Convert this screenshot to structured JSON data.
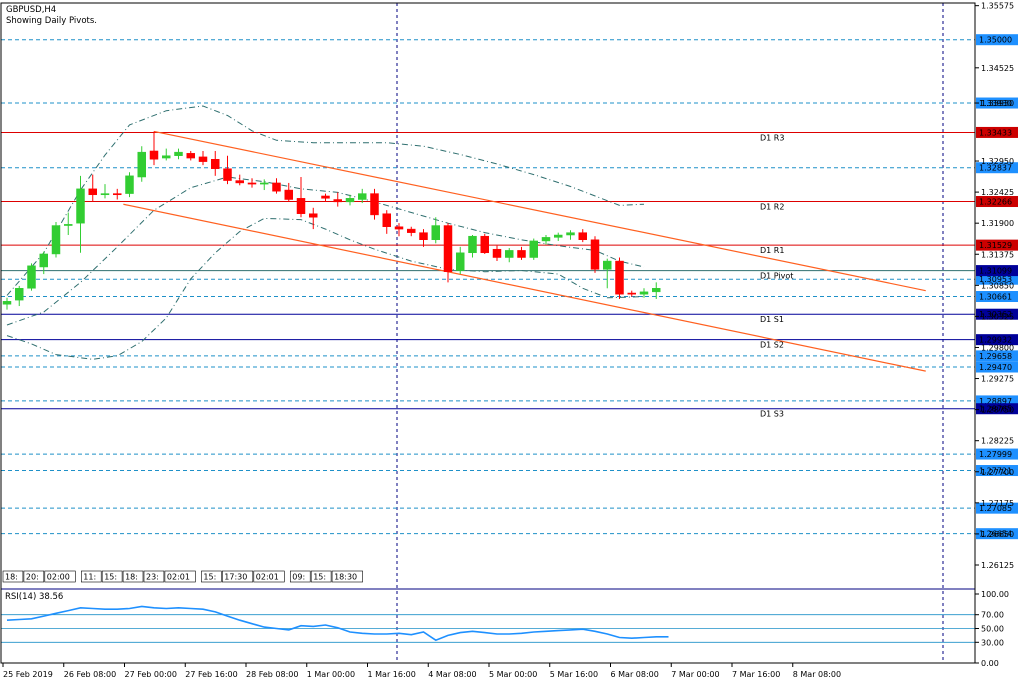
{
  "header": {
    "symbol": "GBPUSD,H4",
    "subtitle": "Showing Daily Pivots."
  },
  "colors": {
    "background": "#ffffff",
    "frame": "#000080",
    "bull": "#32cd32",
    "bear": "#ff0000",
    "pivot_red": "#dd0000",
    "pivot_blue": "#000099",
    "level_dash": "#1e90c8",
    "channel": "#ff6020",
    "bollinger": "#2f6f6f",
    "rsi_line": "#1e90ff",
    "label_box": "#1e90ff"
  },
  "chart_data": [
    {
      "type": "candlestick",
      "title": "GBPUSD,H4",
      "subtitle": "Showing Daily Pivots.",
      "ylim": [
        1.2577,
        1.3562
      ],
      "price_ticks": [
        "1.35575",
        "1.34525",
        "1.33930",
        "1.32950",
        "1.32425",
        "1.31900",
        "1.31375",
        "1.30850",
        "1.30325",
        "1.29800",
        "1.29275",
        "1.28750",
        "1.28225",
        "1.27700",
        "1.27175",
        "1.26650",
        "1.26125"
      ],
      "x_labels": [
        "25 Feb 2019",
        "26 Feb 08:00",
        "27 Feb 00:00",
        "27 Feb 16:00",
        "28 Feb 08:00",
        "1 Mar 00:00",
        "1 Mar 16:00",
        "4 Mar 08:00",
        "5 Mar 00:00",
        "5 Mar 16:00",
        "6 Mar 08:00",
        "7 Mar 00:00",
        "7 Mar 16:00",
        "8 Mar 08:00"
      ],
      "session_labels": [
        "18:",
        "20:",
        "02:00",
        "11:",
        "15:",
        "18:",
        "23:",
        "02:01",
        "15:",
        "17:30",
        "02:01",
        "09:",
        "15:",
        "18:30"
      ],
      "candles": [
        {
          "o": 1.3053,
          "h": 1.3064,
          "l": 1.3044,
          "c": 1.3058
        },
        {
          "o": 1.306,
          "h": 1.3084,
          "l": 1.305,
          "c": 1.308
        },
        {
          "o": 1.308,
          "h": 1.3122,
          "l": 1.3076,
          "c": 1.3118
        },
        {
          "o": 1.3116,
          "h": 1.3142,
          "l": 1.3104,
          "c": 1.3138
        },
        {
          "o": 1.3138,
          "h": 1.3192,
          "l": 1.3132,
          "c": 1.3186
        },
        {
          "o": 1.3186,
          "h": 1.3208,
          "l": 1.317,
          "c": 1.3188
        },
        {
          "o": 1.319,
          "h": 1.327,
          "l": 1.314,
          "c": 1.3248
        },
        {
          "o": 1.3248,
          "h": 1.3272,
          "l": 1.3226,
          "c": 1.3238
        },
        {
          "o": 1.3238,
          "h": 1.3256,
          "l": 1.3232,
          "c": 1.324
        },
        {
          "o": 1.324,
          "h": 1.3248,
          "l": 1.323,
          "c": 1.3238
        },
        {
          "o": 1.324,
          "h": 1.3276,
          "l": 1.3234,
          "c": 1.327
        },
        {
          "o": 1.3268,
          "h": 1.332,
          "l": 1.326,
          "c": 1.331
        },
        {
          "o": 1.3312,
          "h": 1.3345,
          "l": 1.3288,
          "c": 1.3298
        },
        {
          "o": 1.33,
          "h": 1.3316,
          "l": 1.3296,
          "c": 1.3304
        },
        {
          "o": 1.3304,
          "h": 1.3316,
          "l": 1.3298,
          "c": 1.331
        },
        {
          "o": 1.3308,
          "h": 1.3312,
          "l": 1.3296,
          "c": 1.33
        },
        {
          "o": 1.3302,
          "h": 1.3312,
          "l": 1.3288,
          "c": 1.3294
        },
        {
          "o": 1.3298,
          "h": 1.3312,
          "l": 1.327,
          "c": 1.3282
        },
        {
          "o": 1.3282,
          "h": 1.3304,
          "l": 1.3256,
          "c": 1.3262
        },
        {
          "o": 1.3262,
          "h": 1.3272,
          "l": 1.3254,
          "c": 1.3258
        },
        {
          "o": 1.3258,
          "h": 1.3266,
          "l": 1.325,
          "c": 1.3256
        },
        {
          "o": 1.3256,
          "h": 1.3264,
          "l": 1.3246,
          "c": 1.3258
        },
        {
          "o": 1.3258,
          "h": 1.3266,
          "l": 1.324,
          "c": 1.3244
        },
        {
          "o": 1.3246,
          "h": 1.3258,
          "l": 1.3226,
          "c": 1.323
        },
        {
          "o": 1.3232,
          "h": 1.3268,
          "l": 1.32,
          "c": 1.3206
        },
        {
          "o": 1.3206,
          "h": 1.3216,
          "l": 1.318,
          "c": 1.32
        },
        {
          "o": 1.3236,
          "h": 1.324,
          "l": 1.3226,
          "c": 1.3232
        },
        {
          "o": 1.323,
          "h": 1.3242,
          "l": 1.3218,
          "c": 1.3226
        },
        {
          "o": 1.3226,
          "h": 1.3238,
          "l": 1.322,
          "c": 1.3232
        },
        {
          "o": 1.323,
          "h": 1.3248,
          "l": 1.3224,
          "c": 1.324
        },
        {
          "o": 1.324,
          "h": 1.3248,
          "l": 1.3196,
          "c": 1.3204
        },
        {
          "o": 1.3206,
          "h": 1.3212,
          "l": 1.3172,
          "c": 1.3184
        },
        {
          "o": 1.3184,
          "h": 1.319,
          "l": 1.3168,
          "c": 1.318
        },
        {
          "o": 1.318,
          "h": 1.3184,
          "l": 1.3168,
          "c": 1.3174
        },
        {
          "o": 1.3174,
          "h": 1.318,
          "l": 1.315,
          "c": 1.3162
        },
        {
          "o": 1.3162,
          "h": 1.32,
          "l": 1.3156,
          "c": 1.3186
        },
        {
          "o": 1.3186,
          "h": 1.319,
          "l": 1.309,
          "c": 1.3108
        },
        {
          "o": 1.311,
          "h": 1.315,
          "l": 1.3104,
          "c": 1.314
        },
        {
          "o": 1.314,
          "h": 1.317,
          "l": 1.3132,
          "c": 1.3168
        },
        {
          "o": 1.3168,
          "h": 1.3172,
          "l": 1.3138,
          "c": 1.314
        },
        {
          "o": 1.3146,
          "h": 1.3152,
          "l": 1.3126,
          "c": 1.3132
        },
        {
          "o": 1.3132,
          "h": 1.3148,
          "l": 1.3124,
          "c": 1.3144
        },
        {
          "o": 1.3144,
          "h": 1.315,
          "l": 1.3128,
          "c": 1.3132
        },
        {
          "o": 1.3132,
          "h": 1.3164,
          "l": 1.3128,
          "c": 1.316
        },
        {
          "o": 1.316,
          "h": 1.317,
          "l": 1.3154,
          "c": 1.3166
        },
        {
          "o": 1.3166,
          "h": 1.3174,
          "l": 1.316,
          "c": 1.317
        },
        {
          "o": 1.317,
          "h": 1.3178,
          "l": 1.3162,
          "c": 1.3174
        },
        {
          "o": 1.3174,
          "h": 1.318,
          "l": 1.3158,
          "c": 1.3162
        },
        {
          "o": 1.3162,
          "h": 1.3168,
          "l": 1.3106,
          "c": 1.3112
        },
        {
          "o": 1.3112,
          "h": 1.313,
          "l": 1.308,
          "c": 1.3126
        },
        {
          "o": 1.3126,
          "h": 1.3132,
          "l": 1.3062,
          "c": 1.307
        },
        {
          "o": 1.3072,
          "h": 1.3076,
          "l": 1.3066,
          "c": 1.307
        },
        {
          "o": 1.307,
          "h": 1.308,
          "l": 1.3064,
          "c": 1.3074
        },
        {
          "o": 1.3074,
          "h": 1.309,
          "l": 1.3062,
          "c": 1.308
        }
      ],
      "pivot_levels": [
        {
          "name": "D1 R3",
          "value": 1.33433,
          "label": "1.33433"
        },
        {
          "name": "D1 R2",
          "value": 1.32266,
          "label": "1.32266"
        },
        {
          "name": "D1 R1",
          "value": 1.31529,
          "label": "1.31529"
        },
        {
          "name": "D1 Pivot",
          "value": 1.31099,
          "label": "1.31099"
        },
        {
          "name": "D1 S1",
          "value": 1.30362,
          "label": "1.30362"
        },
        {
          "name": "D1 S2",
          "value": 1.29932,
          "label": "1.29932"
        },
        {
          "name": "D1 S3",
          "value": 1.28765,
          "label": "1.28765"
        }
      ],
      "horizontal_levels": [
        {
          "value": 1.35,
          "label": "1.35000"
        },
        {
          "value": 1.3393,
          "label": "1.33930"
        },
        {
          "value": 1.32837,
          "label": "1.32837"
        },
        {
          "value": 1.30953,
          "label": "1.30953"
        },
        {
          "value": 1.30661,
          "label": "1.30661"
        },
        {
          "value": 1.29658,
          "label": "1.29658"
        },
        {
          "value": 1.2947,
          "label": "1.29470"
        },
        {
          "value": 1.28897,
          "label": "1.28897"
        },
        {
          "value": 1.27999,
          "label": "1.27999"
        },
        {
          "value": 1.27721,
          "label": "1.27721"
        },
        {
          "value": 1.27085,
          "label": "1.27085"
        },
        {
          "value": 1.26654,
          "label": "1.26654"
        }
      ],
      "channel_lines": [
        {
          "from": [
            12,
            1.3345
          ],
          "to": [
            75,
            1.3076
          ]
        },
        {
          "from": [
            9.5,
            1.3222
          ],
          "to": [
            75,
            1.294
          ]
        }
      ],
      "bollinger_upper": [
        [
          0,
          1.3068
        ],
        [
          3,
          1.314
        ],
        [
          6,
          1.3246
        ],
        [
          8,
          1.3305
        ],
        [
          10,
          1.3356
        ],
        [
          13,
          1.338
        ],
        [
          16,
          1.3388
        ],
        [
          18,
          1.3372
        ],
        [
          20,
          1.3346
        ],
        [
          22,
          1.333
        ],
        [
          25,
          1.3326
        ],
        [
          28,
          1.3326
        ],
        [
          31,
          1.3326
        ],
        [
          34,
          1.332
        ],
        [
          37,
          1.3306
        ],
        [
          40,
          1.329
        ],
        [
          43,
          1.3272
        ],
        [
          46,
          1.3252
        ],
        [
          49,
          1.3228
        ],
        [
          50,
          1.322
        ],
        [
          52,
          1.3222
        ]
      ],
      "bollinger_middle": [
        [
          0,
          1.3018
        ],
        [
          3,
          1.304
        ],
        [
          6,
          1.309
        ],
        [
          9,
          1.315
        ],
        [
          12,
          1.3212
        ],
        [
          15,
          1.325
        ],
        [
          18,
          1.3268
        ],
        [
          21,
          1.326
        ],
        [
          24,
          1.3248
        ],
        [
          27,
          1.3242
        ],
        [
          30,
          1.3226
        ],
        [
          33,
          1.3208
        ],
        [
          36,
          1.319
        ],
        [
          39,
          1.3174
        ],
        [
          42,
          1.3162
        ],
        [
          45,
          1.3152
        ],
        [
          48,
          1.3144
        ],
        [
          50,
          1.3126
        ],
        [
          52,
          1.3116
        ]
      ],
      "bollinger_lower": [
        [
          0,
          1.3
        ],
        [
          2,
          1.2986
        ],
        [
          4,
          1.2968
        ],
        [
          7,
          1.296
        ],
        [
          9,
          1.2966
        ],
        [
          11,
          1.299
        ],
        [
          13,
          1.303
        ],
        [
          15,
          1.3096
        ],
        [
          17,
          1.314
        ],
        [
          19,
          1.3176
        ],
        [
          21,
          1.3198
        ],
        [
          24,
          1.3196
        ],
        [
          26,
          1.318
        ],
        [
          28,
          1.3162
        ],
        [
          30,
          1.3146
        ],
        [
          33,
          1.3126
        ],
        [
          36,
          1.3112
        ],
        [
          39,
          1.3108
        ],
        [
          42,
          1.311
        ],
        [
          45,
          1.3104
        ],
        [
          47,
          1.308
        ],
        [
          49,
          1.3064
        ],
        [
          52,
          1.3066
        ]
      ],
      "indicator": {
        "label": "RSI(14) 38.56",
        "ylim": [
          0,
          100
        ],
        "ticks": [
          "100.00",
          "70.00",
          "50.00",
          "30.00",
          "0.00"
        ],
        "levels": [
          70,
          50,
          30
        ],
        "values": [
          62,
          63,
          64,
          68,
          72,
          76,
          80,
          79,
          78,
          78,
          79,
          82,
          80,
          79,
          80,
          79,
          78,
          74,
          68,
          62,
          57,
          52,
          50,
          48,
          54,
          53,
          55,
          51,
          45,
          43,
          42,
          42,
          43,
          41,
          45,
          33,
          40,
          44,
          46,
          44,
          42,
          42,
          43,
          45,
          46,
          47,
          48,
          49,
          46,
          42,
          37,
          36,
          37,
          38,
          38
        ]
      }
    }
  ]
}
